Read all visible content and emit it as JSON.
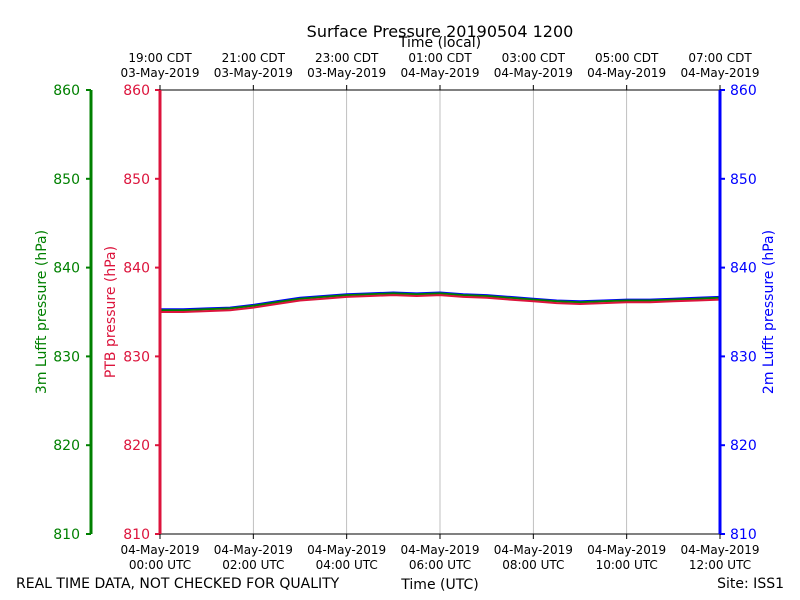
{
  "chart_data": {
    "type": "line",
    "title": "Surface Pressure 20190504 1200",
    "xlabel": "Time (UTC)",
    "x2label": "Time (local)",
    "y_axes": [
      {
        "id": "green",
        "label": "3m Lufft pressure (hPa)",
        "color": "#008000",
        "lim": [
          810,
          860
        ],
        "ticks": [
          "810",
          "820",
          "830",
          "840",
          "850",
          "860"
        ]
      },
      {
        "id": "red",
        "label": "PTB pressure (hPa)",
        "color": "#dc143c",
        "lim": [
          810,
          860
        ],
        "ticks": [
          "810",
          "820",
          "830",
          "840",
          "850",
          "860"
        ]
      },
      {
        "id": "blue",
        "label": "2m Lufft pressure (hPa)",
        "color": "#0000ff",
        "lim": [
          810,
          860
        ],
        "ticks": [
          "810",
          "820",
          "830",
          "840",
          "850",
          "860"
        ]
      }
    ],
    "xlim": [
      "2019-05-04 00:00",
      "2019-05-04 12:00"
    ],
    "x_ticks": [
      {
        "x": "2019-05-04 00:00",
        "line1": "04-May-2019",
        "line2": "00:00 UTC"
      },
      {
        "x": "2019-05-04 02:00",
        "line1": "04-May-2019",
        "line2": "02:00 UTC"
      },
      {
        "x": "2019-05-04 04:00",
        "line1": "04-May-2019",
        "line2": "04:00 UTC"
      },
      {
        "x": "2019-05-04 06:00",
        "line1": "04-May-2019",
        "line2": "06:00 UTC"
      },
      {
        "x": "2019-05-04 08:00",
        "line1": "04-May-2019",
        "line2": "08:00 UTC"
      },
      {
        "x": "2019-05-04 10:00",
        "line1": "04-May-2019",
        "line2": "10:00 UTC"
      },
      {
        "x": "2019-05-04 12:00",
        "line1": "04-May-2019",
        "line2": "12:00 UTC"
      }
    ],
    "x2_ticks": [
      {
        "x": "2019-05-04 00:00",
        "line1": "19:00 CDT",
        "line2": "03-May-2019"
      },
      {
        "x": "2019-05-04 02:00",
        "line1": "21:00 CDT",
        "line2": "03-May-2019"
      },
      {
        "x": "2019-05-04 04:00",
        "line1": "23:00 CDT",
        "line2": "03-May-2019"
      },
      {
        "x": "2019-05-04 06:00",
        "line1": "01:00 CDT",
        "line2": "04-May-2019"
      },
      {
        "x": "2019-05-04 08:00",
        "line1": "03:00 CDT",
        "line2": "04-May-2019"
      },
      {
        "x": "2019-05-04 10:00",
        "line1": "05:00 CDT",
        "line2": "04-May-2019"
      },
      {
        "x": "2019-05-04 12:00",
        "line1": "07:00 CDT",
        "line2": "04-May-2019"
      }
    ],
    "grid": "vertical",
    "series": [
      {
        "axis": "blue",
        "color": "#0000ff",
        "x": [
          "2019-05-04 00:00",
          "2019-05-04 00:30",
          "2019-05-04 01:00",
          "2019-05-04 01:30",
          "2019-05-04 02:00",
          "2019-05-04 02:30",
          "2019-05-04 03:00",
          "2019-05-04 03:30",
          "2019-05-04 04:00",
          "2019-05-04 04:30",
          "2019-05-04 05:00",
          "2019-05-04 05:30",
          "2019-05-04 06:00",
          "2019-05-04 06:30",
          "2019-05-04 07:00",
          "2019-05-04 07:30",
          "2019-05-04 08:00",
          "2019-05-04 08:30",
          "2019-05-04 09:00",
          "2019-05-04 09:30",
          "2019-05-04 10:00",
          "2019-05-04 10:30",
          "2019-05-04 11:00",
          "2019-05-04 11:30",
          "2019-05-04 12:00"
        ],
        "values": [
          835.3,
          835.3,
          835.4,
          835.5,
          835.8,
          836.2,
          836.6,
          836.8,
          837.0,
          837.1,
          837.2,
          837.1,
          837.2,
          837.0,
          836.9,
          836.7,
          836.5,
          836.3,
          836.2,
          836.3,
          836.4,
          836.4,
          836.5,
          836.6,
          836.7
        ]
      },
      {
        "axis": "green",
        "color": "#008000",
        "x": [
          "2019-05-04 00:00",
          "2019-05-04 00:30",
          "2019-05-04 01:00",
          "2019-05-04 01:30",
          "2019-05-04 02:00",
          "2019-05-04 02:30",
          "2019-05-04 03:00",
          "2019-05-04 03:30",
          "2019-05-04 04:00",
          "2019-05-04 04:30",
          "2019-05-04 05:00",
          "2019-05-04 05:30",
          "2019-05-04 06:00",
          "2019-05-04 06:30",
          "2019-05-04 07:00",
          "2019-05-04 07:30",
          "2019-05-04 08:00",
          "2019-05-04 08:30",
          "2019-05-04 09:00",
          "2019-05-04 09:30",
          "2019-05-04 10:00",
          "2019-05-04 10:30",
          "2019-05-04 11:00",
          "2019-05-04 11:30",
          "2019-05-04 12:00"
        ],
        "values": [
          835.2,
          835.2,
          835.3,
          835.4,
          835.7,
          836.1,
          836.5,
          836.7,
          836.9,
          837.0,
          837.1,
          837.0,
          837.1,
          836.9,
          836.8,
          836.6,
          836.4,
          836.2,
          836.1,
          836.2,
          836.3,
          836.3,
          836.4,
          836.5,
          836.6
        ]
      },
      {
        "axis": "red",
        "color": "#dc143c",
        "x": [
          "2019-05-04 00:00",
          "2019-05-04 00:30",
          "2019-05-04 01:00",
          "2019-05-04 01:30",
          "2019-05-04 02:00",
          "2019-05-04 02:30",
          "2019-05-04 03:00",
          "2019-05-04 03:30",
          "2019-05-04 04:00",
          "2019-05-04 04:30",
          "2019-05-04 05:00",
          "2019-05-04 05:30",
          "2019-05-04 06:00",
          "2019-05-04 06:30",
          "2019-05-04 07:00",
          "2019-05-04 07:30",
          "2019-05-04 08:00",
          "2019-05-04 08:30",
          "2019-05-04 09:00",
          "2019-05-04 09:30",
          "2019-05-04 10:00",
          "2019-05-04 10:30",
          "2019-05-04 11:00",
          "2019-05-04 11:30",
          "2019-05-04 12:00"
        ],
        "values": [
          835.0,
          835.0,
          835.1,
          835.2,
          835.5,
          835.9,
          836.3,
          836.5,
          836.7,
          836.8,
          836.9,
          836.8,
          836.9,
          836.7,
          836.6,
          836.4,
          836.2,
          836.0,
          835.9,
          836.0,
          836.1,
          836.1,
          836.2,
          836.3,
          836.4
        ]
      }
    ]
  },
  "footer": {
    "disclaimer": "REAL TIME DATA, NOT CHECKED FOR QUALITY",
    "site": "Site: ISS1"
  }
}
